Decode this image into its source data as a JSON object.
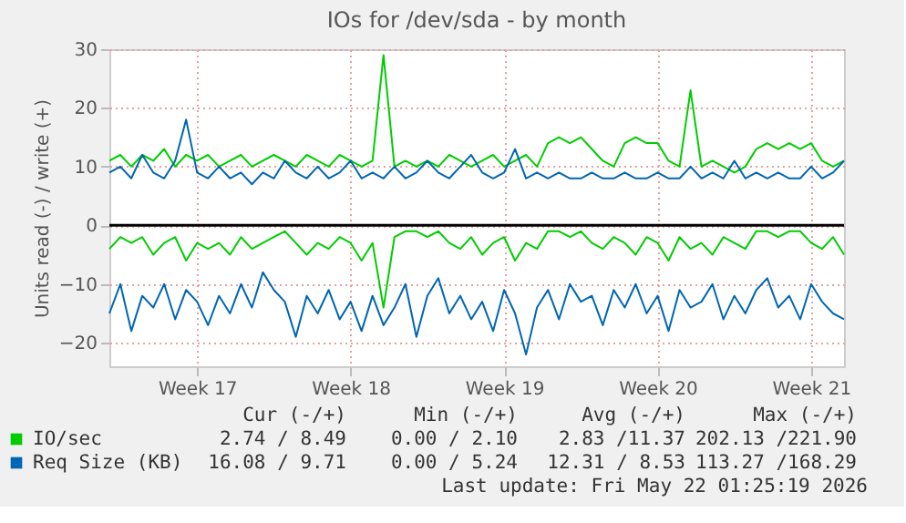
{
  "chart_data": {
    "type": "line",
    "title": "IOs for /dev/sda - by month",
    "ylabel": "Units read (-) / write (+)",
    "categories": [
      null,
      null,
      null,
      null,
      null,
      null,
      null,
      null,
      "Week 17",
      null,
      null,
      null,
      null,
      null,
      null,
      null,
      null,
      null,
      null,
      null,
      null,
      null,
      "Week 18",
      null,
      null,
      null,
      null,
      null,
      null,
      null,
      null,
      null,
      null,
      null,
      null,
      null,
      "Week 19",
      null,
      null,
      null,
      null,
      null,
      null,
      null,
      null,
      null,
      null,
      null,
      null,
      null,
      "Week 20",
      null,
      null,
      null,
      null,
      null,
      null,
      null,
      null,
      null,
      null,
      null,
      null,
      null,
      "Week 21",
      null,
      null,
      null
    ],
    "series": [
      {
        "name": "IO/sec",
        "color": "#00cc00",
        "values": [
          11,
          12,
          10,
          12,
          11,
          13,
          10,
          12,
          11,
          12,
          10,
          11,
          12,
          10,
          11,
          12,
          11,
          10,
          12,
          11,
          10,
          12,
          11,
          10,
          11,
          29,
          10,
          11,
          10,
          11,
          10,
          12,
          11,
          10,
          11,
          12,
          10,
          11,
          12,
          10,
          14,
          15,
          14,
          15,
          13,
          11,
          10,
          14,
          15,
          14,
          14,
          11,
          10,
          23,
          10,
          11,
          10,
          9,
          10,
          13,
          14,
          13,
          14,
          13,
          14,
          11,
          10,
          11
        ]
      },
      {
        "color": "#00cc00",
        "values": [
          -4,
          -2,
          -3,
          -2,
          -5,
          -3,
          -2,
          -6,
          -3,
          -4,
          -3,
          -5,
          -2,
          -4,
          -3,
          -2,
          -1,
          -3,
          -5,
          -3,
          -4,
          -2,
          -3,
          -6,
          -3,
          -14,
          -2,
          -1,
          -1,
          -2,
          -1,
          -3,
          -4,
          -2,
          -5,
          -3,
          -2,
          -6,
          -3,
          -4,
          -1,
          -1,
          -2,
          -1,
          -3,
          -4,
          -2,
          -3,
          -5,
          -2,
          -3,
          -6,
          -2,
          -4,
          -3,
          -5,
          -2,
          -3,
          -4,
          -1,
          -1,
          -2,
          -1,
          -1,
          -3,
          -4,
          -2,
          -5
        ]
      },
      {
        "name": "Req Size (KB)",
        "color": "#0066b3",
        "values": [
          9,
          10,
          8,
          12,
          9,
          8,
          11,
          18,
          9,
          8,
          10,
          8,
          9,
          7,
          9,
          8,
          11,
          9,
          8,
          10,
          8,
          9,
          11,
          8,
          9,
          8,
          10,
          8,
          9,
          11,
          9,
          8,
          10,
          12,
          9,
          8,
          9,
          13,
          8,
          9,
          8,
          9,
          8,
          8,
          9,
          8,
          8,
          9,
          8,
          8,
          9,
          8,
          8,
          10,
          8,
          9,
          8,
          11,
          8,
          9,
          8,
          9,
          8,
          8,
          10,
          8,
          9,
          11
        ]
      },
      {
        "color": "#0066b3",
        "values": [
          -15,
          -10,
          -18,
          -12,
          -14,
          -10,
          -16,
          -11,
          -13,
          -17,
          -12,
          -15,
          -10,
          -14,
          -8,
          -11,
          -13,
          -19,
          -12,
          -15,
          -11,
          -16,
          -13,
          -18,
          -12,
          -17,
          -14,
          -10,
          -19,
          -12,
          -9,
          -15,
          -12,
          -16,
          -13,
          -18,
          -11,
          -15,
          -22,
          -14,
          -11,
          -16,
          -10,
          -13,
          -12,
          -17,
          -11,
          -14,
          -10,
          -15,
          -12,
          -18,
          -11,
          -14,
          -13,
          -10,
          -16,
          -12,
          -15,
          -11,
          -9,
          -14,
          -12,
          -16,
          -10,
          -13,
          -15,
          -16
        ]
      }
    ],
    "ylim": [
      -24,
      30
    ],
    "yticks": [
      -20,
      -10,
      0,
      10,
      20,
      30
    ],
    "grid": true,
    "legend": "bottom",
    "ref_lines": [
      {
        "axis": "y",
        "value": 0,
        "color": "#000000"
      }
    ],
    "annotations": [
      "Cur (-/+)",
      "Min (-/+)",
      "Avg (-/+)",
      "Max (-/+)",
      "2.74 / 8.49",
      "0.00 / 2.10",
      "2.83 /11.37",
      "202.13 /221.90",
      "16.08 / 9.71",
      "0.00 / 5.24",
      "12.31 / 8.53",
      "113.27 /168.29",
      "Last update: Fri May 22 01:25:19 2026"
    ]
  }
}
